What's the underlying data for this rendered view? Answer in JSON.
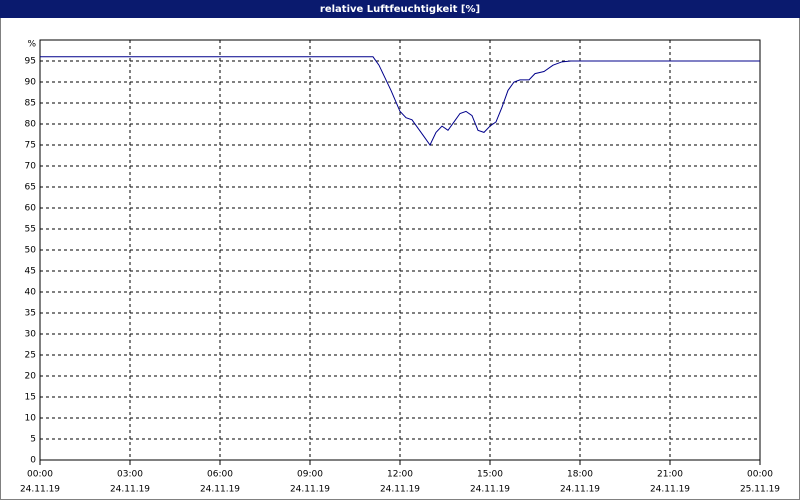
{
  "chart_data": {
    "type": "line",
    "title": "relative Luftfeuchtigkeit [%]",
    "ylabel": "%",
    "color": "#00008b",
    "grid": true,
    "x": [
      0,
      11.1,
      11.3,
      11.5,
      11.7,
      12.0,
      12.2,
      12.4,
      12.6,
      12.8,
      13.0,
      13.2,
      13.4,
      13.6,
      13.8,
      14.0,
      14.2,
      14.4,
      14.6,
      14.8,
      15.0,
      15.2,
      15.4,
      15.6,
      15.8,
      16.0,
      16.3,
      16.5,
      16.8,
      17.1,
      17.4,
      17.7,
      24
    ],
    "values": [
      96,
      96,
      94,
      91,
      88,
      83,
      81.5,
      81,
      79,
      77,
      75,
      78,
      79.5,
      78.5,
      80.5,
      82.5,
      83,
      82,
      78.5,
      78,
      79.5,
      80.5,
      84,
      88,
      90,
      90.5,
      90.5,
      92,
      92.5,
      94,
      94.8,
      95,
      95
    ],
    "xlim": [
      0,
      24
    ],
    "xticks": [
      {
        "value": 0,
        "label": "00:00"
      },
      {
        "value": 3,
        "label": "03:00"
      },
      {
        "value": 6,
        "label": "06:00"
      },
      {
        "value": 9,
        "label": "09:00"
      },
      {
        "value": 12,
        "label": "12:00"
      },
      {
        "value": 15,
        "label": "15:00"
      },
      {
        "value": 18,
        "label": "18:00"
      },
      {
        "value": 21,
        "label": "21:00"
      },
      {
        "value": 24,
        "label": "00:00"
      }
    ],
    "xtick_dates": [
      "24.11.19",
      "24.11.19",
      "24.11.19",
      "24.11.19",
      "24.11.19",
      "24.11.19",
      "24.11.19",
      "24.11.19",
      "25.11.19"
    ],
    "ylim": [
      0,
      100
    ],
    "yticks": [
      0,
      5,
      10,
      15,
      20,
      25,
      30,
      35,
      40,
      45,
      50,
      55,
      60,
      65,
      70,
      75,
      80,
      85,
      90,
      95
    ]
  }
}
